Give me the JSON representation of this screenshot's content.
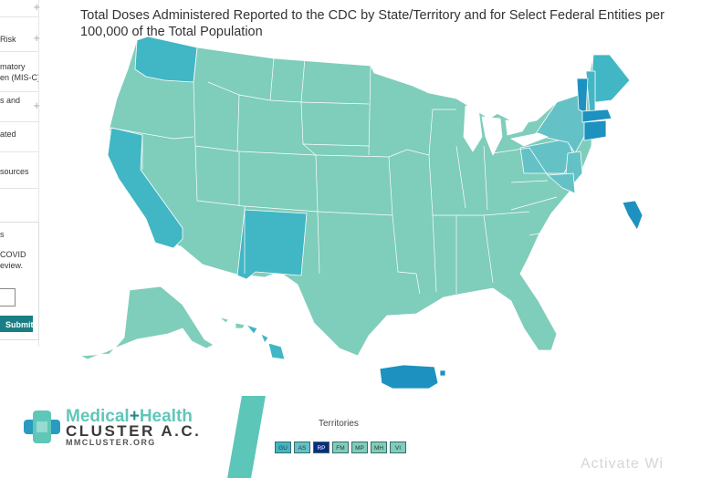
{
  "title": "Total Doses Administered Reported to the CDC by State/Territory and for Select Federal Entities per 100,000 of the Total Population",
  "colors": {
    "light": "#7fcdbb",
    "medium_light": "#64c2c6",
    "medium": "#41b6c4",
    "dark": "#1d91c0",
    "darkest": "#0c2c84",
    "border": "#ffffff"
  },
  "sidebar": {
    "items": [
      {
        "label": ""
      },
      {
        "label": "Risk"
      },
      {
        "label": "matory"
      },
      {
        "label": "en (MIS-C)"
      },
      {
        "label": "s and"
      },
      {
        "label": "ated"
      },
      {
        "label": "sources"
      }
    ],
    "feedback_heading": "s",
    "feedback_text_1": "COVID",
    "feedback_text_2": "eview.",
    "submit_label": "Submit"
  },
  "logo": {
    "line1_a": "Medical",
    "line1_plus": "+",
    "line1_b": "Health",
    "line2": "CLUSTER A.C.",
    "line3": "MMCLUSTER.ORG"
  },
  "territories": {
    "label": "Territories",
    "buttons": [
      {
        "code": "GU",
        "color": "#41b6c4"
      },
      {
        "code": "AS",
        "color": "#64c2c6"
      },
      {
        "code": "RP",
        "color": "#0c2c84"
      },
      {
        "code": "FM",
        "color": "#7fcdbb"
      },
      {
        "code": "MP",
        "color": "#7fcdbb"
      },
      {
        "code": "MH",
        "color": "#7fcdbb"
      },
      {
        "code": "VI",
        "color": "#7fcdbb"
      }
    ]
  },
  "watermark": "Activate Wi"
}
